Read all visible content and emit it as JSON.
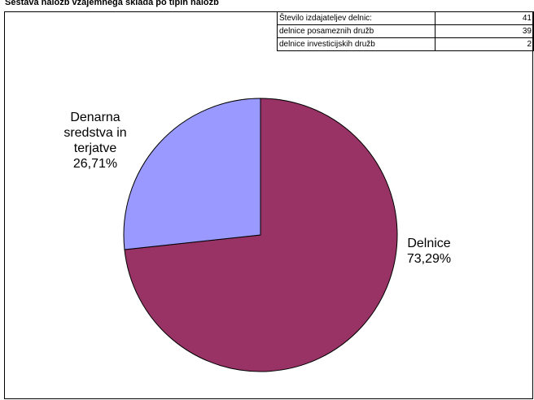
{
  "chart_data": {
    "type": "pie",
    "title": "Sestava naložb vzajemnega sklada po tipih naložb",
    "categories": [
      "Delnice",
      "Denarna sredstva in terjatve"
    ],
    "values": [
      73.29,
      26.71
    ],
    "value_labels": [
      "73,29%",
      "26,71%"
    ],
    "colors": [
      "#993366",
      "#9999ff"
    ]
  },
  "table": {
    "rows": [
      [
        "Število izdajateljev delnic:",
        41
      ],
      [
        "delnice posameznih družb",
        39
      ],
      [
        "delnice investicijskih družb",
        2
      ]
    ]
  }
}
